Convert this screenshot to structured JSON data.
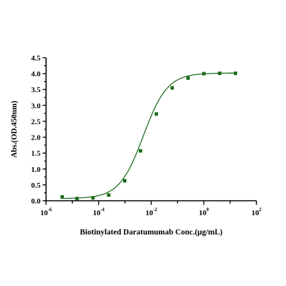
{
  "chart_data": {
    "type": "scatter",
    "xscale": "log",
    "xlabel": "Biotinylated Daratumumab Conc.(μg/mL)",
    "ylabel": "Abs.(OD.450nm)",
    "xlim": [
      1e-06,
      100
    ],
    "ylim": [
      0,
      4.5
    ],
    "x_ticks": [
      {
        "base": "10",
        "exp": "-6",
        "value": 1e-06
      },
      {
        "base": "10",
        "exp": "-4",
        "value": 0.0001
      },
      {
        "base": "10",
        "exp": "-2",
        "value": 0.01
      },
      {
        "base": "10",
        "exp": "0",
        "value": 1
      },
      {
        "base": "10",
        "exp": "2",
        "value": 100
      }
    ],
    "y_ticks": [
      "0.0",
      "0.5",
      "1.0",
      "1.5",
      "2.0",
      "2.5",
      "3.0",
      "3.5",
      "4.0",
      "4.5"
    ],
    "y_tick_values": [
      0,
      0.5,
      1.0,
      1.5,
      2.0,
      2.5,
      3.0,
      3.5,
      4.0,
      4.5
    ],
    "series": [
      {
        "color": "#1a6b1a",
        "points": [
          {
            "x": 4.1e-06,
            "y": 0.12
          },
          {
            "x": 1.5e-05,
            "y": 0.07
          },
          {
            "x": 6.1e-05,
            "y": 0.09
          },
          {
            "x": 0.00024,
            "y": 0.18
          },
          {
            "x": 0.00098,
            "y": 0.63
          },
          {
            "x": 0.0039,
            "y": 1.57
          },
          {
            "x": 0.0156,
            "y": 2.73
          },
          {
            "x": 0.0625,
            "y": 3.55
          },
          {
            "x": 0.25,
            "y": 3.86
          },
          {
            "x": 1.0,
            "y": 4.0
          },
          {
            "x": 4.0,
            "y": 4.01
          },
          {
            "x": 16.0,
            "y": 4.01
          }
        ],
        "fit": {
          "bottom": 0.07,
          "top": 4.02,
          "logEC50": -2.3,
          "hill": 0.95
        }
      }
    ],
    "grid": false,
    "legend": "none"
  }
}
